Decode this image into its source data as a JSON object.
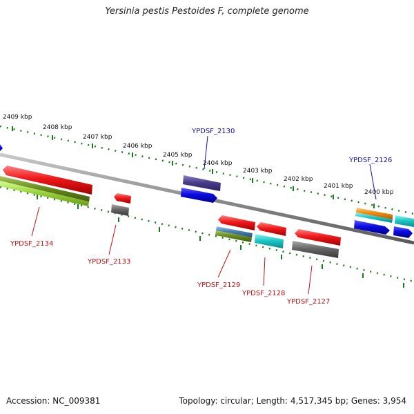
{
  "title": "Yersinia pestis Pestoides F, complete genome",
  "accession": "Accession: NC_009381",
  "stats": "Topology: circular; Length: 4,517,345 bp; Genes: 3,954",
  "scale_labels": [
    "2409 kbp",
    "2408 kbp",
    "2407 kbp",
    "2406 kbp",
    "2405 kbp",
    "2404 kbp",
    "2403 kbp",
    "2402 kbp",
    "2401 kbp",
    "2400 kbp"
  ],
  "gene_labels": {
    "g2130": "YPDSF_2130",
    "g2126": "YPDSF_2126",
    "g2134": "YPDSF_2134",
    "g2133": "YPDSF_2133",
    "g2129": "YPDSF_2129",
    "g2128": "YPDSF_2128",
    "g2127": "YPDSF_2127"
  },
  "colors": {
    "red": "#e81010",
    "blue": "#0a0ad6",
    "navy": "#4a3e8c",
    "grey": "#666666",
    "cyan": "#1ec8c8",
    "orange": "#f08c10",
    "lime": "#9ad43c",
    "olive": "#6b8c22",
    "steel": "#4a82b4",
    "tick_green": "#1a7a1a",
    "backbone": "#8c8c8c",
    "label_red": "#c01010",
    "label_blue": "#10109c"
  }
}
